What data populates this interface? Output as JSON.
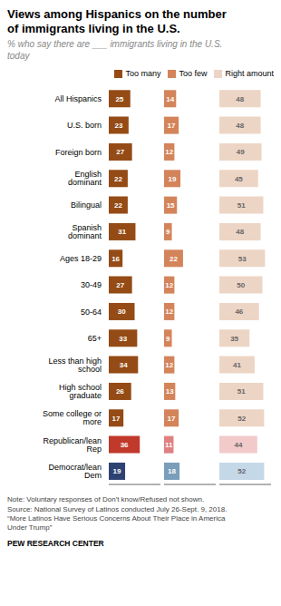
{
  "chart_data": {
    "type": "bar",
    "orientation": "horizontal",
    "title": "Views among Hispanics on the number\nof immigrants living in the U.S.",
    "subtitle": "% who say there are ___ immigrants living in the U.S.\ntoday",
    "categories": [
      "All Hispanics",
      "U.S. born",
      "Foreign born",
      "English dominant",
      "Bilingual",
      "Spanish dominant",
      "Ages 18-29",
      "30-49",
      "50-64",
      "65+",
      "Less than high school",
      "High school graduate",
      "Some college or more",
      "Republican/lean Rep",
      "Democrat/lean Dem"
    ],
    "series": [
      {
        "name": "Too many",
        "color": "#944B15",
        "colors": [
          "#944B15",
          "#944B15",
          "#944B15",
          "#944B15",
          "#944B15",
          "#944B15",
          "#944B15",
          "#944B15",
          "#944B15",
          "#944B15",
          "#944B15",
          "#944B15",
          "#944B15",
          "#C1392B",
          "#2E4272"
        ],
        "values": [
          25,
          23,
          27,
          22,
          22,
          31,
          16,
          27,
          30,
          33,
          34,
          26,
          17,
          36,
          19
        ]
      },
      {
        "name": "Too few",
        "color": "#D4845A",
        "colors": [
          "#D4845A",
          "#D4845A",
          "#D4845A",
          "#D4845A",
          "#D4845A",
          "#D4845A",
          "#D4845A",
          "#D4845A",
          "#D4845A",
          "#D4845A",
          "#D4845A",
          "#D4845A",
          "#D4845A",
          "#E08080",
          "#7A9EBA"
        ],
        "values": [
          14,
          17,
          12,
          19,
          15,
          9,
          22,
          12,
          12,
          9,
          12,
          13,
          17,
          11,
          18
        ]
      },
      {
        "name": "Right amount",
        "color": "#EDD5C5",
        "colors": [
          "#EDD5C5",
          "#EDD5C5",
          "#EDD5C5",
          "#EDD5C5",
          "#EDD5C5",
          "#EDD5C5",
          "#EDD5C5",
          "#EDD5C5",
          "#EDD5C5",
          "#EDD5C5",
          "#EDD5C5",
          "#EDD5C5",
          "#EDD5C5",
          "#F2CACA",
          "#C5D8E8"
        ],
        "values": [
          48,
          48,
          49,
          45,
          51,
          48,
          53,
          50,
          46,
          35,
          41,
          51,
          52,
          44,
          52
        ]
      }
    ],
    "xlim": [
      0,
      60
    ],
    "xticks": [
      0,
      60
    ],
    "tick_labels": "y",
    "data_labels": true,
    "legend": "upper right",
    "grid": false,
    "annotations": [
      "Note: Voluntary responses of Don't know/Refused not shown.\nSource: National Survey of Latinos conducted July 26-Sept. 9, 2018.\n“More Latinos Have Serious Concerns About Their Place in America\nUnder Trump”",
      "PEW RESEARCH CENTER"
    ]
  }
}
